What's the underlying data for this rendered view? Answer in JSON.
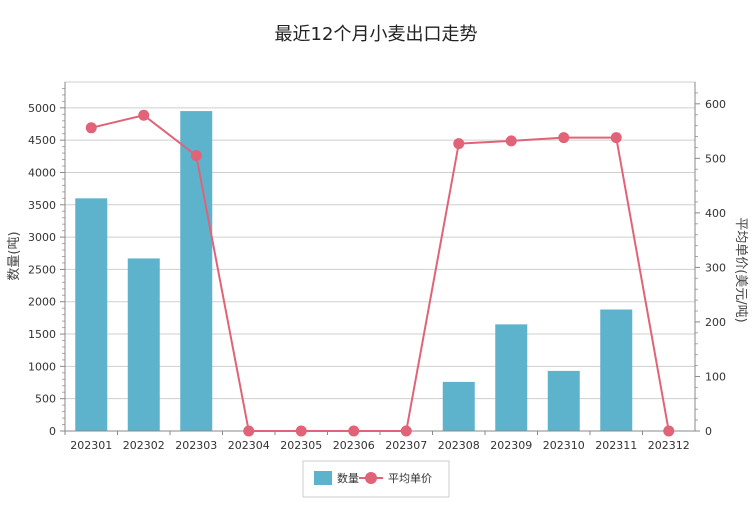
{
  "chart_data": {
    "type": "bar+line",
    "title": "最近12个月小麦出口走势",
    "categories": [
      "202301",
      "202302",
      "202303",
      "202304",
      "202305",
      "202306",
      "202307",
      "202308",
      "202309",
      "202310",
      "202311",
      "202312"
    ],
    "series": [
      {
        "name": "数量",
        "type": "bar",
        "axis": "left",
        "color": "#5eb3cc",
        "values": [
          3600,
          2670,
          4950,
          0,
          0,
          0,
          0,
          760,
          1650,
          930,
          1880,
          0
        ]
      },
      {
        "name": "平均单价",
        "type": "line",
        "axis": "right",
        "color": "#e06377",
        "values": [
          556,
          579,
          505,
          0,
          0,
          0,
          0,
          527,
          532,
          538,
          538,
          0
        ]
      }
    ],
    "ylabel_left": "数量(吨)",
    "ylabel_right": "平均单价(美元/吨)",
    "ylim_left": [
      0,
      5400
    ],
    "ylim_right": [
      0,
      640
    ],
    "yticks_left": [
      "0",
      "500",
      "1000",
      "1500",
      "2000",
      "2500",
      "3000",
      "3500",
      "4000",
      "4500",
      "5000"
    ],
    "yticks_right": [
      "0",
      "100",
      "200",
      "300",
      "400",
      "500",
      "600"
    ],
    "legend_position": "bottom-center",
    "grid": true
  }
}
